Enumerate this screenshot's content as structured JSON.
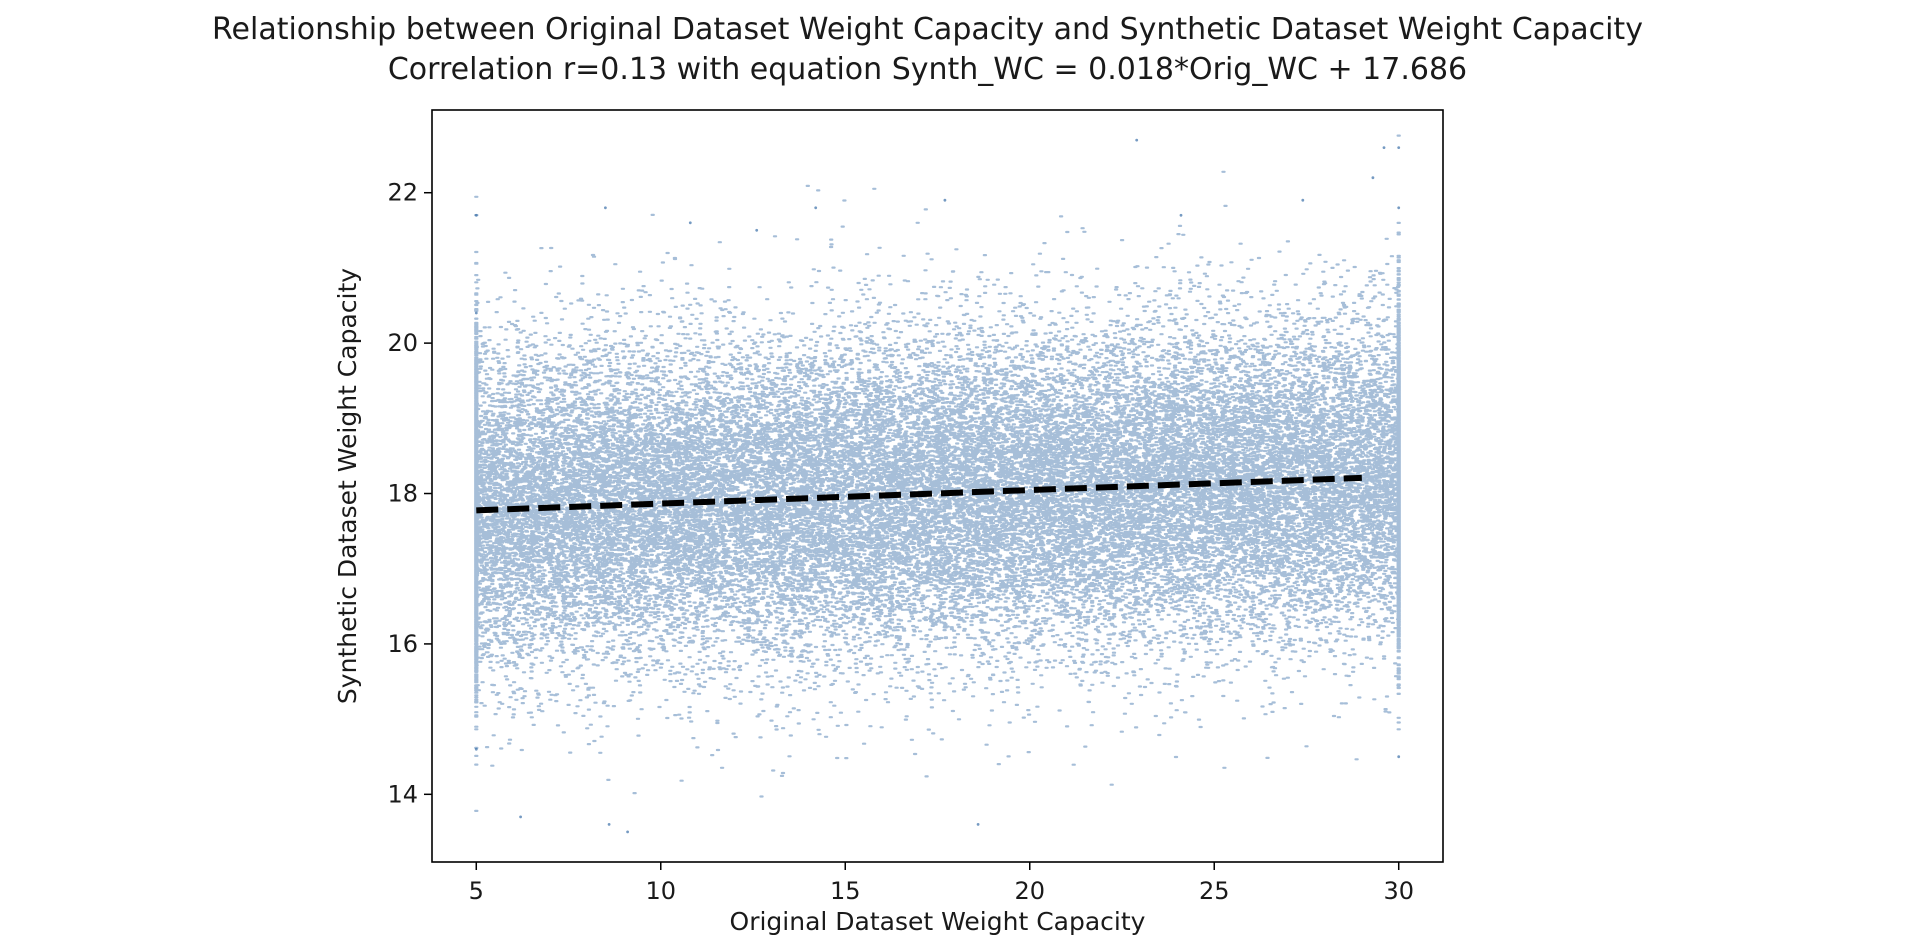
{
  "chart_data": {
    "type": "scatter",
    "title": "Relationship between Original Dataset Weight Capacity and Synthetic Dataset Weight Capacity",
    "subtitle": "Correlation r=0.13 with equation Synth_WC = 0.018*Orig_WC + 17.686",
    "xlabel": "Original Dataset Weight Capacity",
    "ylabel": "Synthetic Dataset Weight Capacity",
    "xlim": [
      3.8,
      31.2
    ],
    "ylim": [
      13.1,
      23.1
    ],
    "xticks": [
      5,
      10,
      15,
      20,
      25,
      30
    ],
    "yticks": [
      14,
      16,
      18,
      20,
      22
    ],
    "xtick_labels": [
      "5",
      "10",
      "15",
      "20",
      "25",
      "30"
    ],
    "ytick_labels": [
      "14",
      "16",
      "18",
      "20",
      "22"
    ],
    "grid": false,
    "legend": "none",
    "point_color": "#3a6fa8",
    "line_color": "#000000",
    "scatter_summary": {
      "x_range": [
        5,
        30
      ],
      "y_center": 17.95,
      "y_spread_sd": 1.05,
      "clusters_at_x": [
        5,
        30
      ],
      "approx_points": 40000
    },
    "fit_line": {
      "style": "dashed",
      "slope": 0.018,
      "intercept": 17.686,
      "x": [
        5,
        29
      ]
    },
    "sample_points": {
      "x": [
        5,
        5,
        5,
        30,
        30,
        30,
        6.2,
        8.6,
        9.1,
        18.6,
        22.9,
        29.6,
        29.3,
        17.7,
        8.5,
        14.2,
        10.8,
        12.6,
        24.1,
        27.4
      ],
      "y": [
        14.6,
        21.7,
        20.4,
        14.5,
        21.8,
        22.6,
        13.7,
        13.6,
        13.5,
        13.6,
        22.7,
        22.6,
        22.2,
        21.9,
        21.8,
        21.8,
        21.6,
        21.5,
        21.7,
        21.9
      ]
    }
  }
}
